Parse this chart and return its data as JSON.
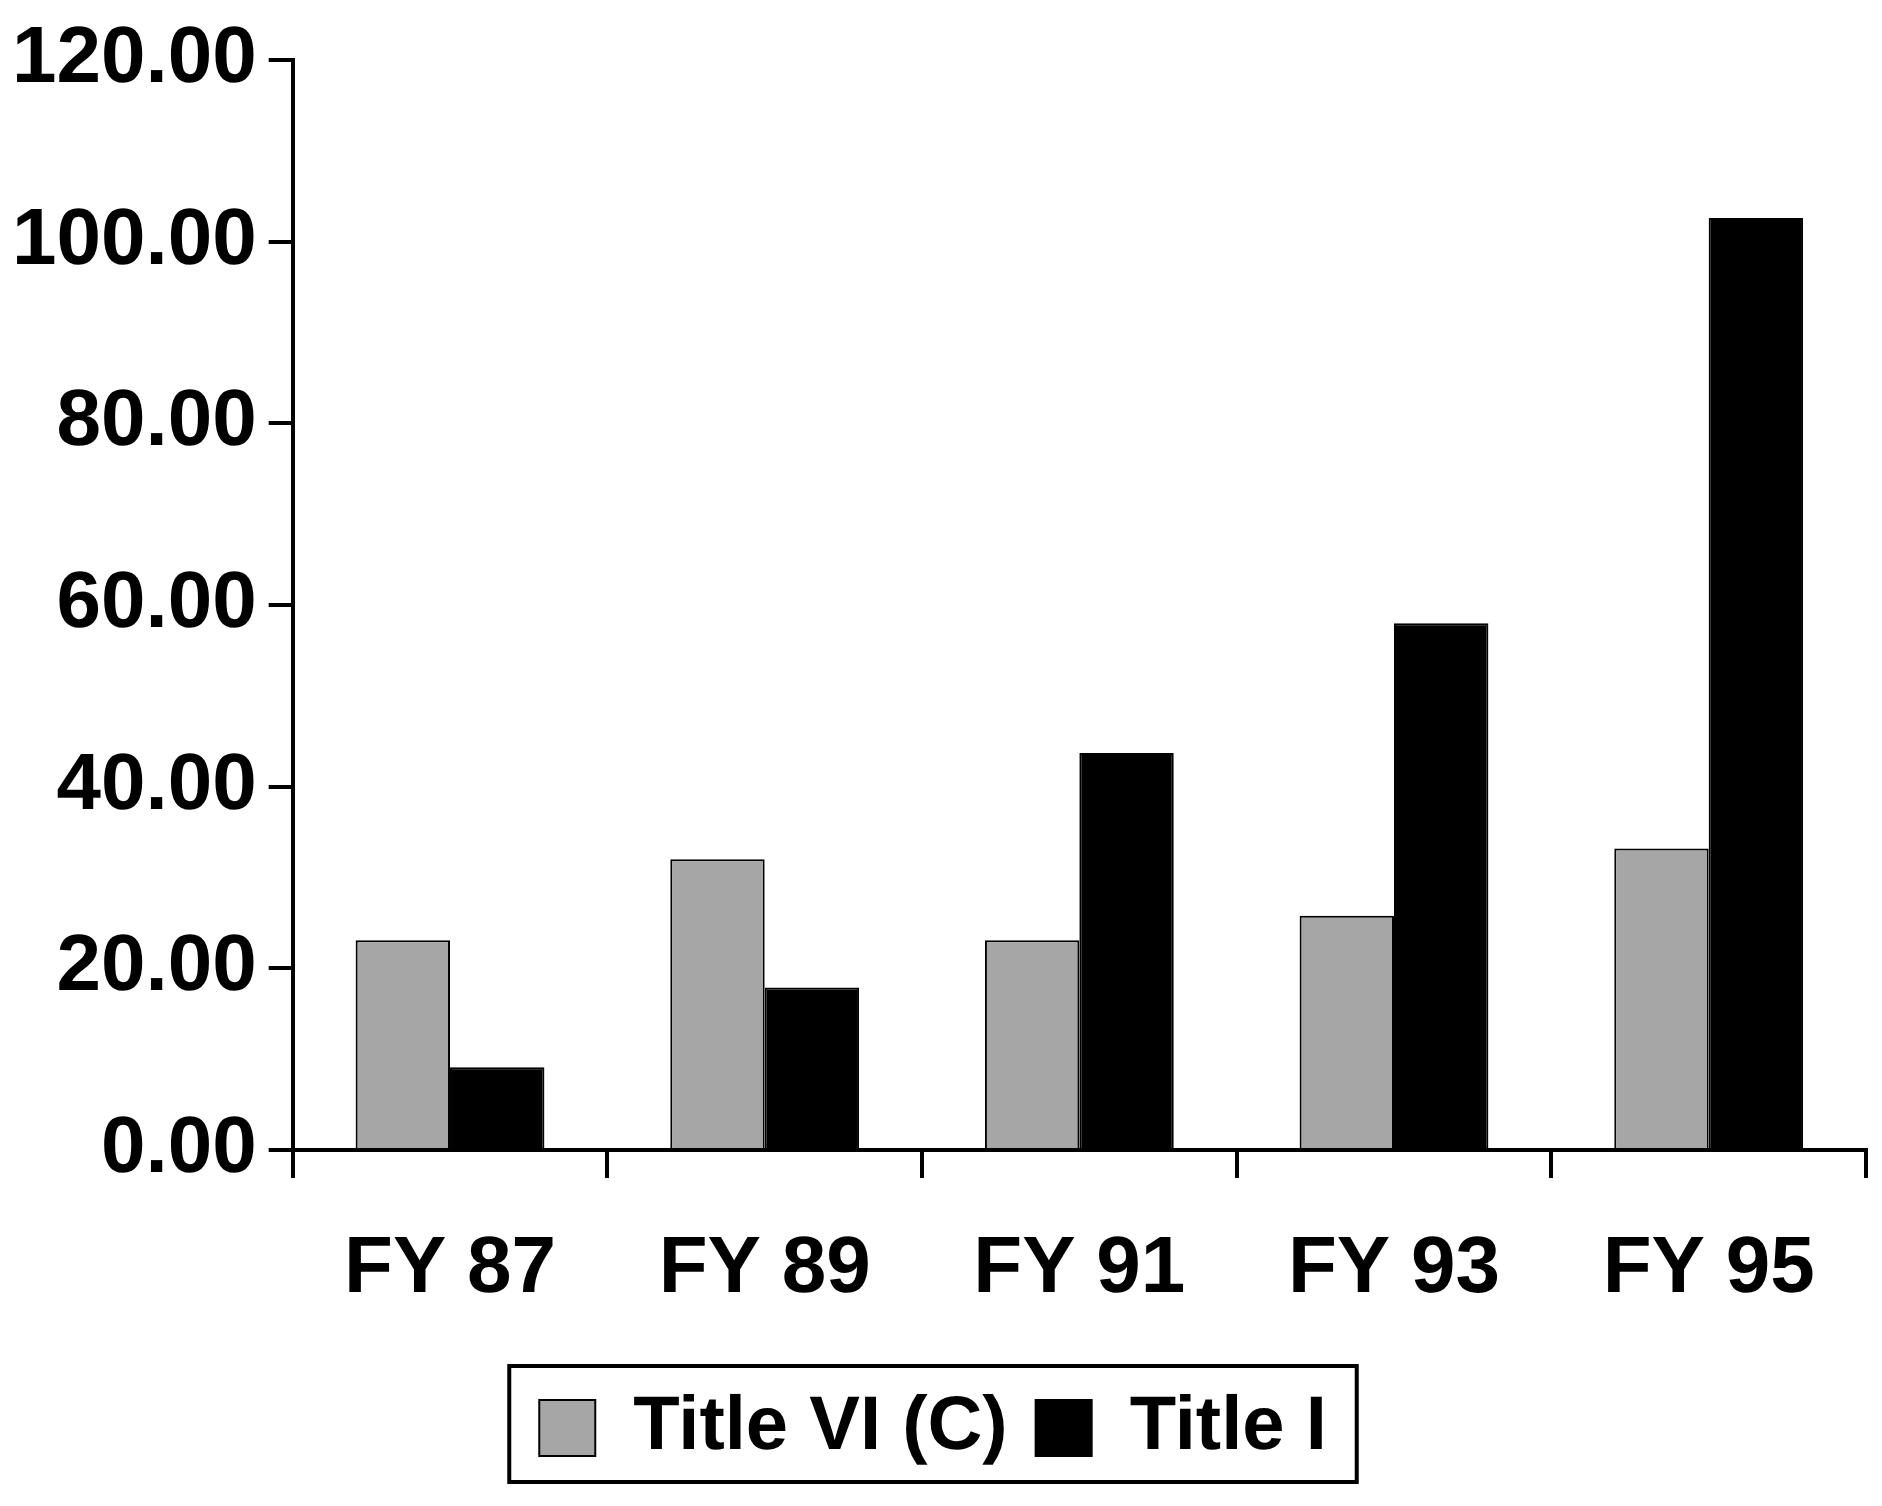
{
  "chart_data": {
    "type": "bar",
    "categories": [
      "FY 87",
      "FY 89",
      "FY 91",
      "FY 93",
      "FY 95"
    ],
    "series": [
      {
        "name": "Title VI (C)",
        "color": "#a6a6a6",
        "values": [
          23.1,
          32,
          23.1,
          25.8,
          33.2
        ]
      },
      {
        "name": "Title I",
        "color": "#000000",
        "values": [
          9.1,
          17.9,
          43.7,
          58,
          102.6
        ]
      }
    ],
    "ylim": [
      0,
      120
    ],
    "yticks": [
      {
        "value": 0,
        "label": "0.00"
      },
      {
        "value": 20,
        "label": "20.00"
      },
      {
        "value": 40,
        "label": "40.00"
      },
      {
        "value": 60,
        "label": "60.00"
      },
      {
        "value": 80,
        "label": "80.00"
      },
      {
        "value": 100,
        "label": "100.00"
      },
      {
        "value": 120,
        "label": "120.00"
      }
    ],
    "grid": false,
    "legend": "bottom"
  }
}
